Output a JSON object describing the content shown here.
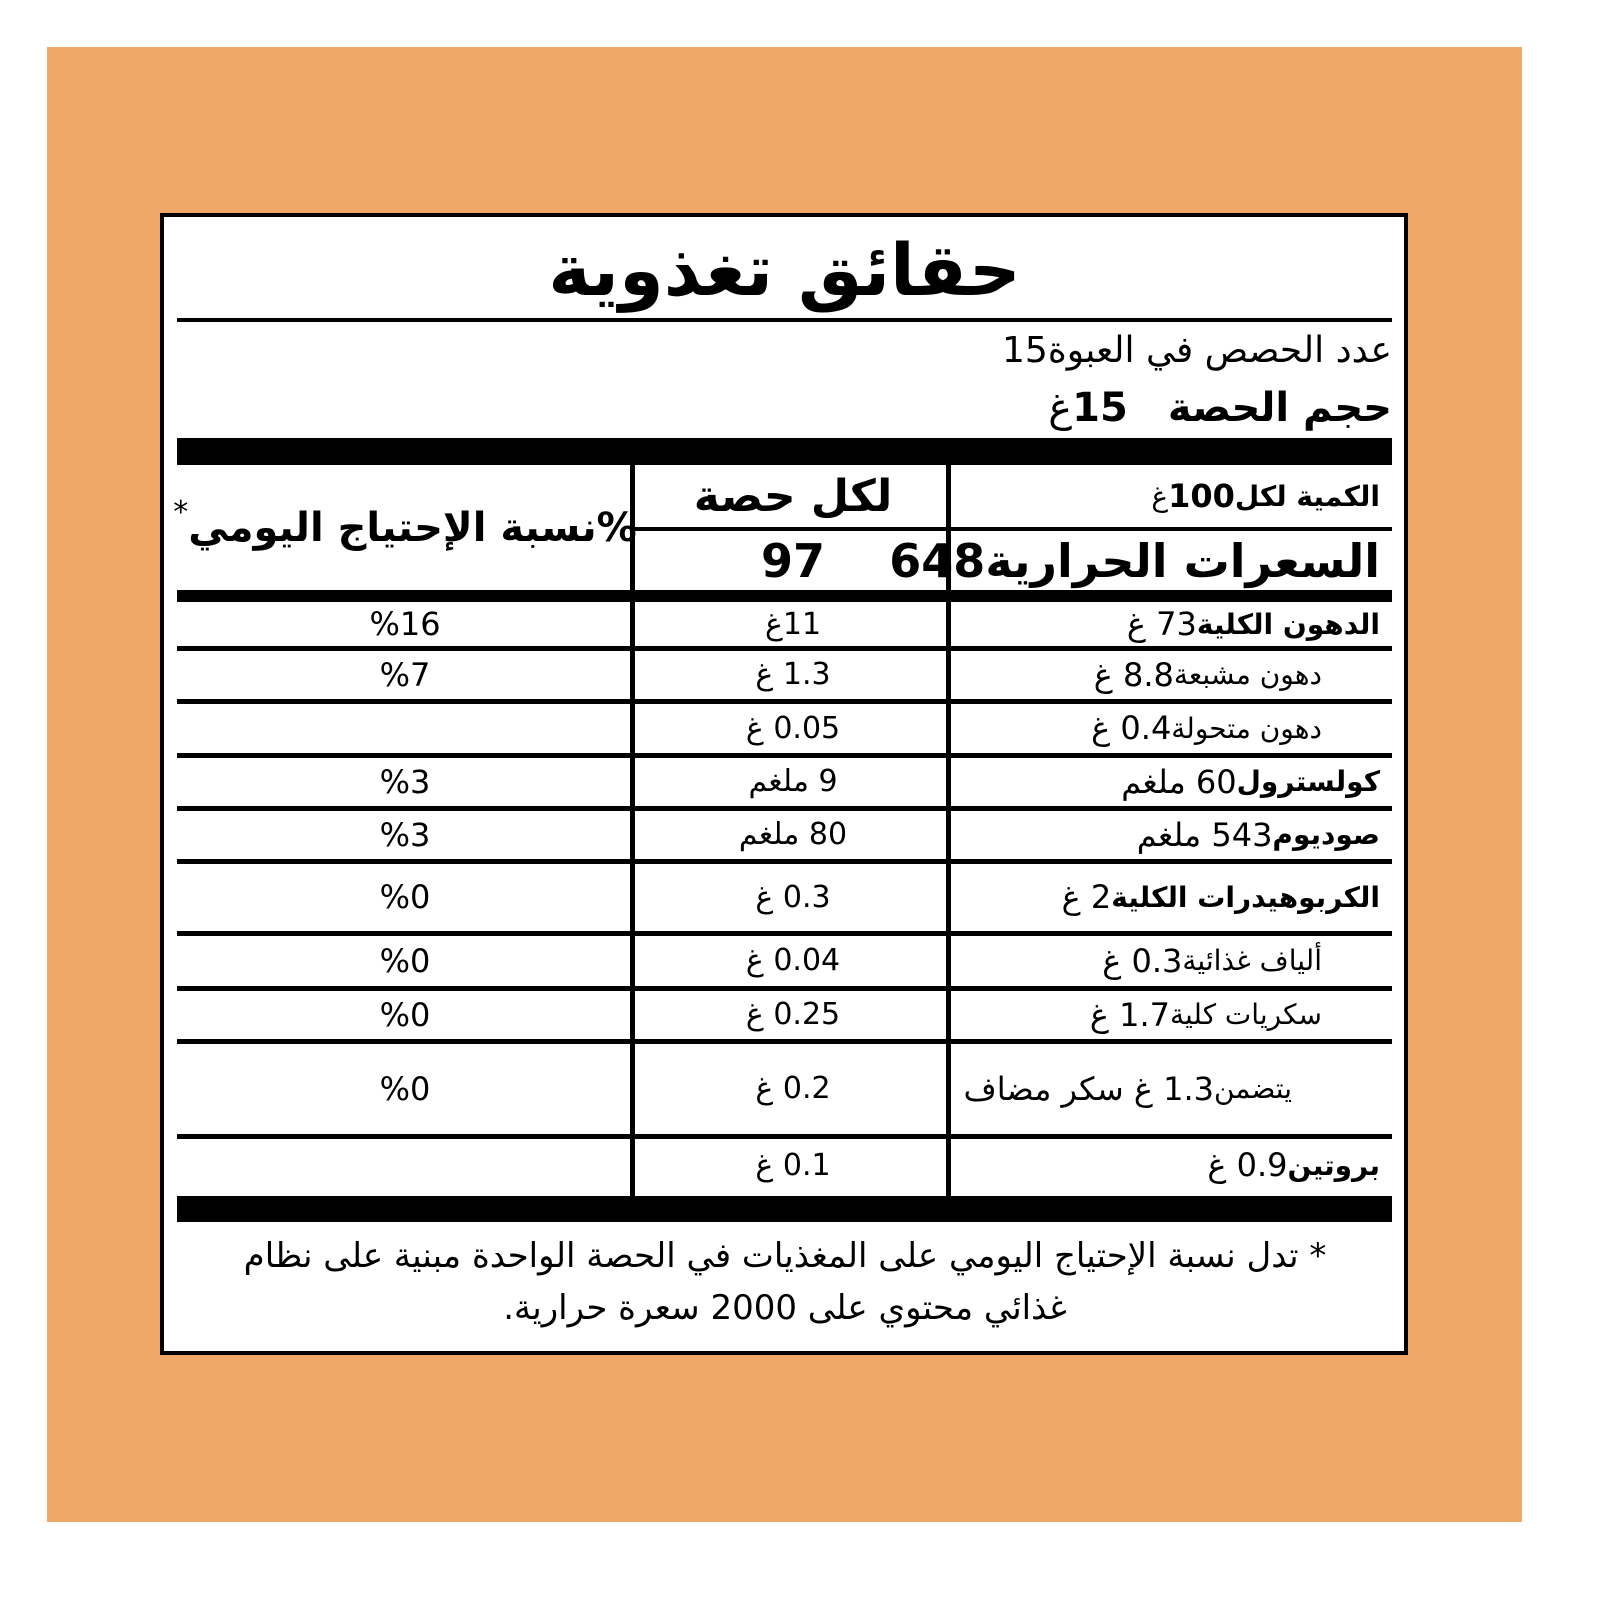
{
  "title": "حقائق تغذوية",
  "servings": {
    "label": "عدد الحصص في العبوة",
    "value": "15"
  },
  "serving_size": {
    "label": "حجم الحصة",
    "value": "15",
    "unit": "غ"
  },
  "header": {
    "amount_label": "الكمية لكل",
    "amount_value": "100",
    "amount_unit": "غ",
    "per_serving": "لكل حصة",
    "daily_value": "%نسبة الإحتياج اليومي",
    "daily_value_mark": "*"
  },
  "calories": {
    "label": "السعرات الحرارية",
    "per_100": "648",
    "per_serving": "97"
  },
  "rows": [
    {
      "name": "الدهون الكلية",
      "amount": "73 غ",
      "per_serving": "11غ",
      "daily_value": "%16",
      "bold": true
    },
    {
      "name": "دهون مشبعة",
      "amount": "8.8 غ",
      "per_serving": "1.3 غ",
      "daily_value": "%7",
      "indent": true
    },
    {
      "name": "دهون متحولة",
      "amount": "0.4 غ",
      "per_serving": "0.05 غ",
      "indent": true
    },
    {
      "name": "كولسترول",
      "amount": "60 ملغم",
      "per_serving": "9 ملغم",
      "daily_value": "%3",
      "bold": true
    },
    {
      "name": "صوديوم",
      "amount": "543 ملغم",
      "per_serving": "80 ملغم",
      "daily_value": "%3",
      "bold": true
    },
    {
      "name": "الكربوهيدرات الكلية",
      "amount": "2 غ",
      "per_serving": "0.3 غ",
      "daily_value": "%0",
      "bold": true
    },
    {
      "name": "ألياف غذائية",
      "amount": "0.3 غ",
      "per_serving": "0.04 غ",
      "daily_value": "%0",
      "indent": true
    },
    {
      "name": "سكريات كلية",
      "amount": "1.7 غ",
      "per_serving": "0.25 غ",
      "daily_value": "%0",
      "indent": true
    },
    {
      "name": "يتضمن",
      "amount": "1.3 غ سكر مضاف",
      "per_serving": "0.2 غ",
      "daily_value": "%0",
      "indent": true
    },
    {
      "name": "بروتين",
      "amount": "0.9 غ",
      "per_serving": "0.1 غ",
      "bold": true
    }
  ],
  "footnote": "* تدل نسبة الإحتياج اليومي على المغذيات في الحصة الواحدة مبنية على نظام غذائي محتوي على 2000 سعرة حرارية."
}
